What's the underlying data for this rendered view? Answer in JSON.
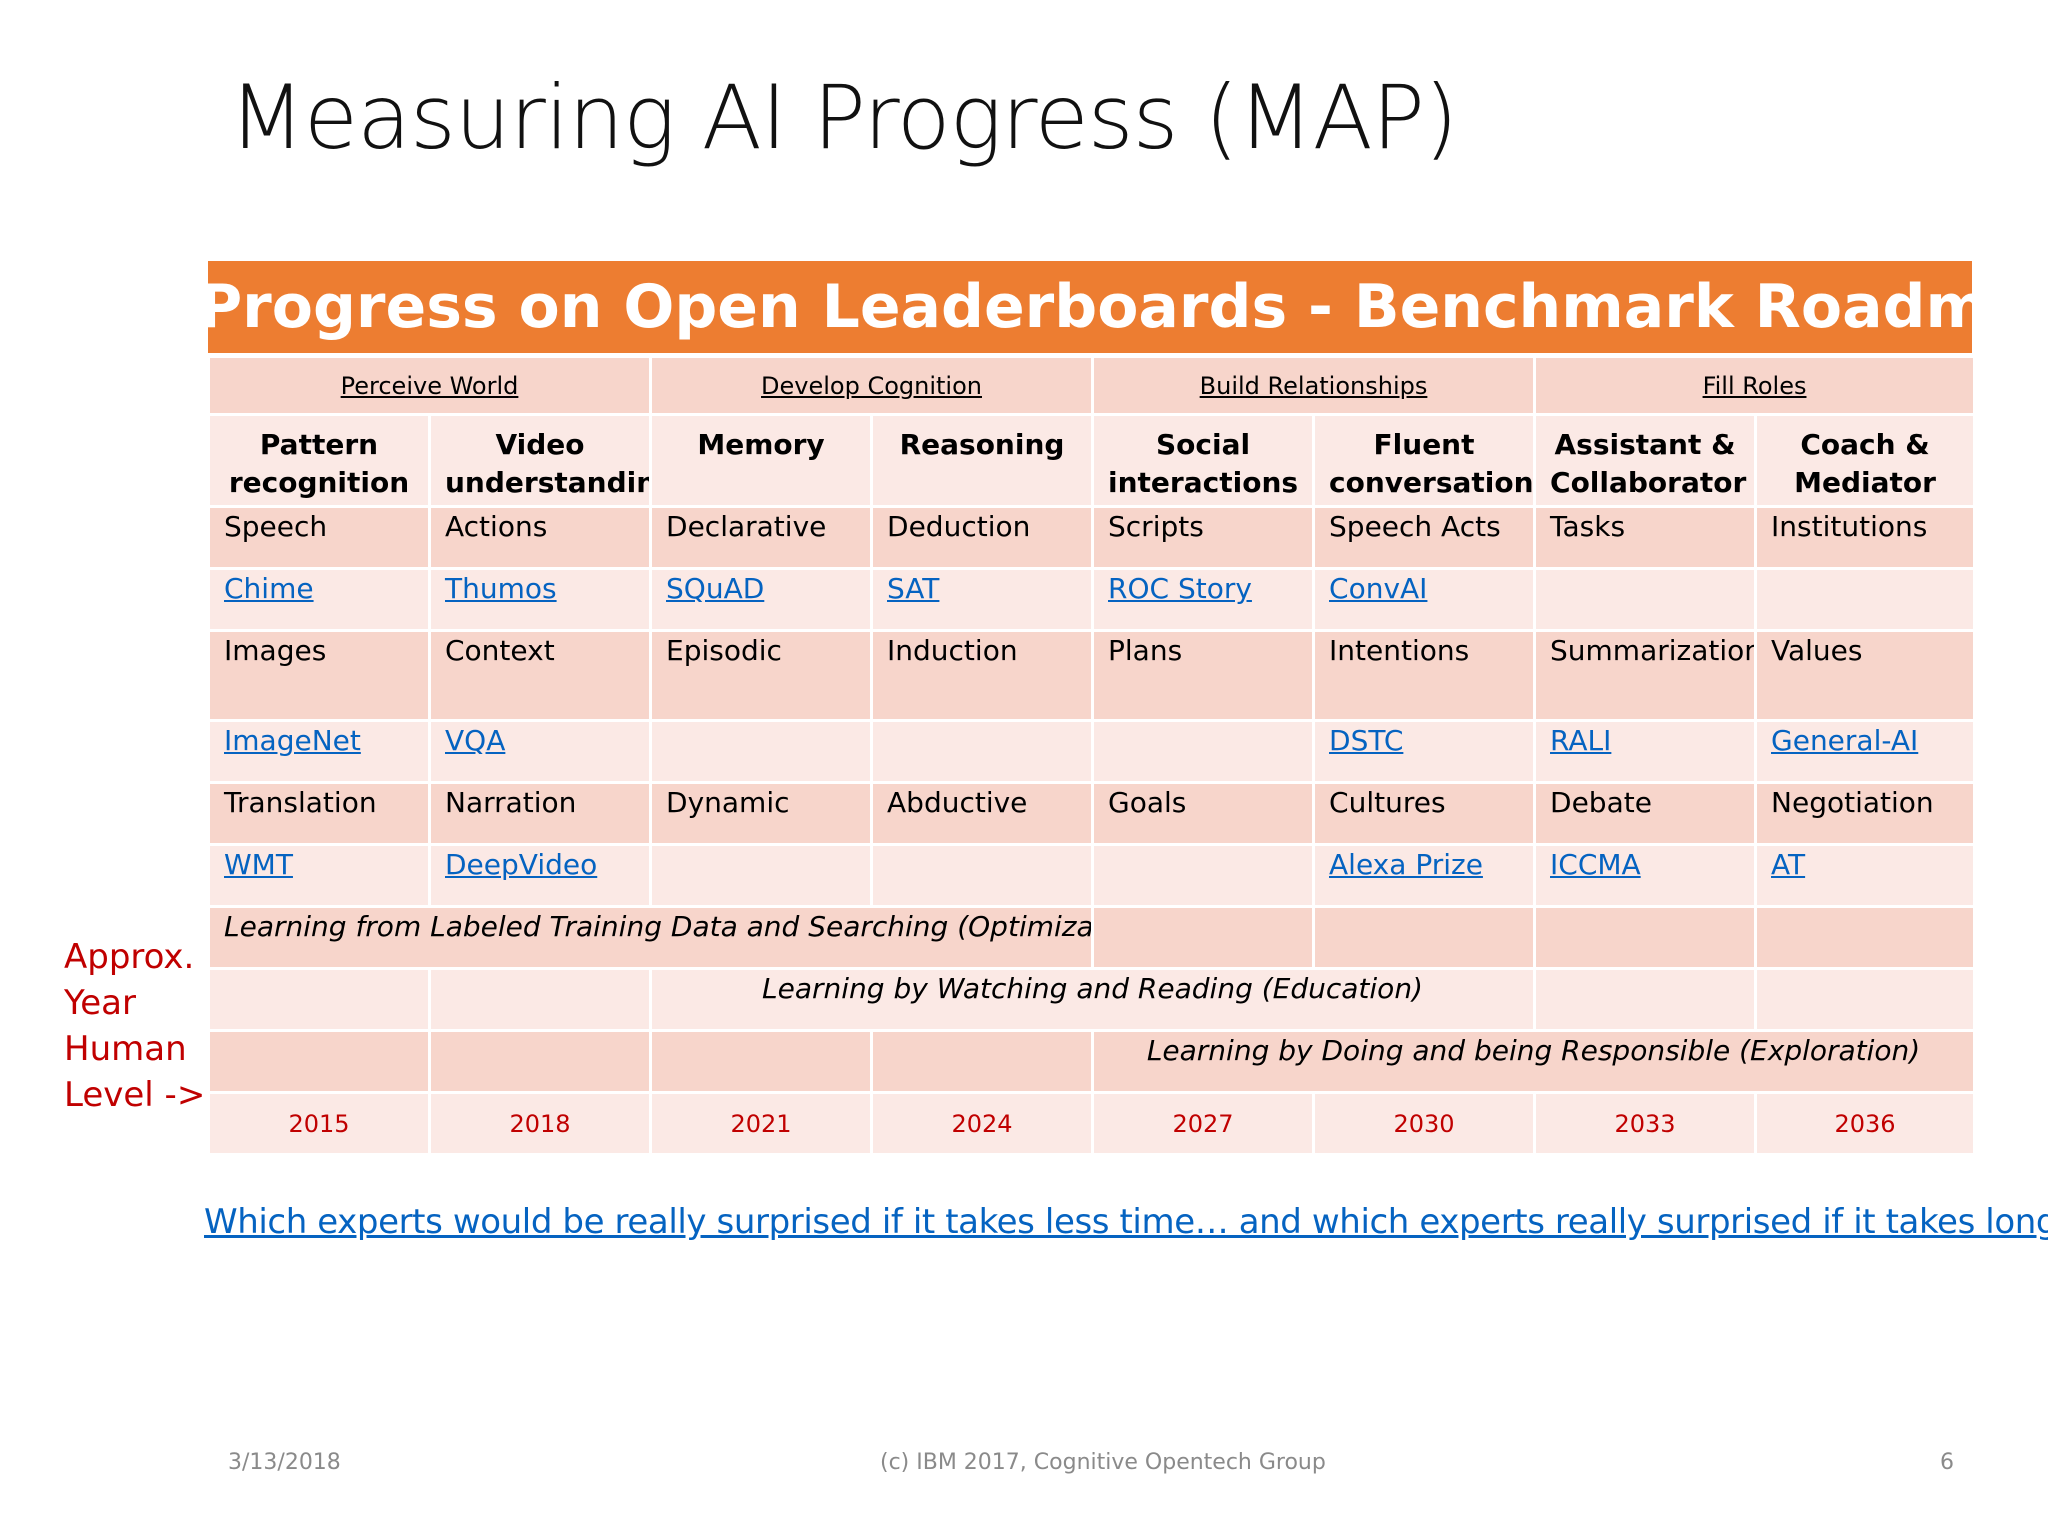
{
  "slide": {
    "title": "Measuring AI Progress (MAP)",
    "banner": "AI Progress on Open Leaderboards - Benchmark Roadmap",
    "side_label": [
      "Approx.",
      "Year",
      "Human",
      "Level ->"
    ],
    "question": "Which experts would be really surprised if it takes less time…  and which experts really surprised if it takes longer?",
    "footer": {
      "date": "3/13/2018",
      "center": "(c) IBM 2017, Cognitive Opentech Group",
      "page": "6"
    }
  },
  "table": {
    "groups": [
      "Perceive World",
      "Develop Cognition",
      "Build Relationships",
      "Fill Roles"
    ],
    "headers": [
      "Pattern recognition",
      "Video understanding",
      "Memory",
      "Reasoning",
      "Social interactions",
      "Fluent conversation",
      "Assistant & Collaborator",
      "Coach & Mediator"
    ],
    "row1": [
      "Speech",
      "Actions",
      "Declarative",
      "Deduction",
      "Scripts",
      "Speech Acts",
      "Tasks",
      "Institutions"
    ],
    "row1_links": [
      "Chime",
      "Thumos",
      "SQuAD",
      "SAT",
      "ROC Story",
      "ConvAI",
      "",
      ""
    ],
    "row2": [
      "Images",
      "Context",
      "Episodic",
      "Induction",
      "Plans",
      "Intentions",
      "Summarization",
      "Values"
    ],
    "row2_links": [
      "ImageNet",
      "VQA",
      "",
      "",
      "",
      "DSTC",
      "RALI",
      "General-AI"
    ],
    "row3": [
      "Translation",
      "Narration",
      "Dynamic",
      "Abductive",
      "Goals",
      "Cultures",
      "Debate",
      "Negotiation"
    ],
    "row3_links": [
      "WMT",
      "DeepVideo",
      "",
      "",
      "",
      "Alexa Prize",
      "ICCMA",
      "AT"
    ],
    "learning": [
      "Learning from Labeled Training Data and Searching (Optimization)",
      "Learning by Watching and Reading (Education)",
      "Learning by Doing and being Responsible (Exploration)"
    ],
    "years": [
      "2015",
      "2018",
      "2021",
      "2024",
      "2027",
      "2030",
      "2033",
      "2036"
    ]
  },
  "colors": {
    "banner": "#ed7d31",
    "row_dark": "#f7d5cb",
    "row_light": "#fbe9e5",
    "year_red": "#c00000",
    "link_blue": "#0563c1"
  }
}
